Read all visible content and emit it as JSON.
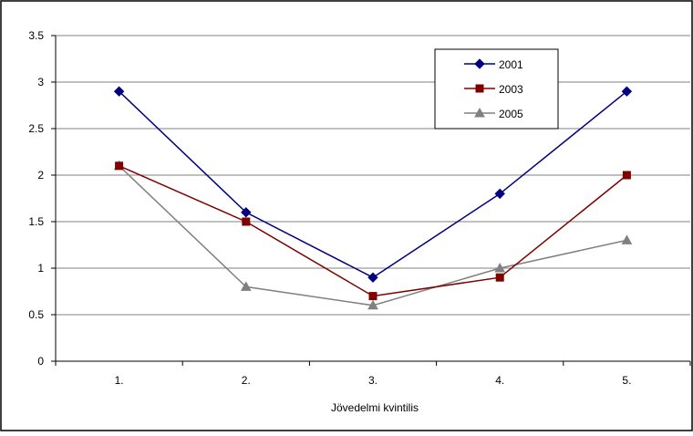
{
  "chart_data": {
    "type": "line",
    "title": "",
    "xlabel": "Jövedelmi kvintilis",
    "ylabel": "",
    "categories": [
      "1.",
      "2.",
      "3.",
      "4.",
      "5."
    ],
    "ylim": [
      0,
      3.5
    ],
    "yticks": [
      "0",
      "0.5",
      "1",
      "1.5",
      "2",
      "2.5",
      "3",
      "3.5"
    ],
    "grid": true,
    "legend_position": "top-right",
    "series": [
      {
        "name": "2001",
        "values": [
          2.9,
          1.6,
          0.9,
          1.8,
          2.9
        ],
        "color": "#000080",
        "marker": "diamond"
      },
      {
        "name": "2003",
        "values": [
          2.1,
          1.5,
          0.7,
          0.9,
          2.0
        ],
        "color": "#800000",
        "marker": "square"
      },
      {
        "name": "2005",
        "values": [
          2.1,
          0.8,
          0.6,
          1.0,
          1.3
        ],
        "color": "#808080",
        "marker": "triangle"
      }
    ]
  }
}
